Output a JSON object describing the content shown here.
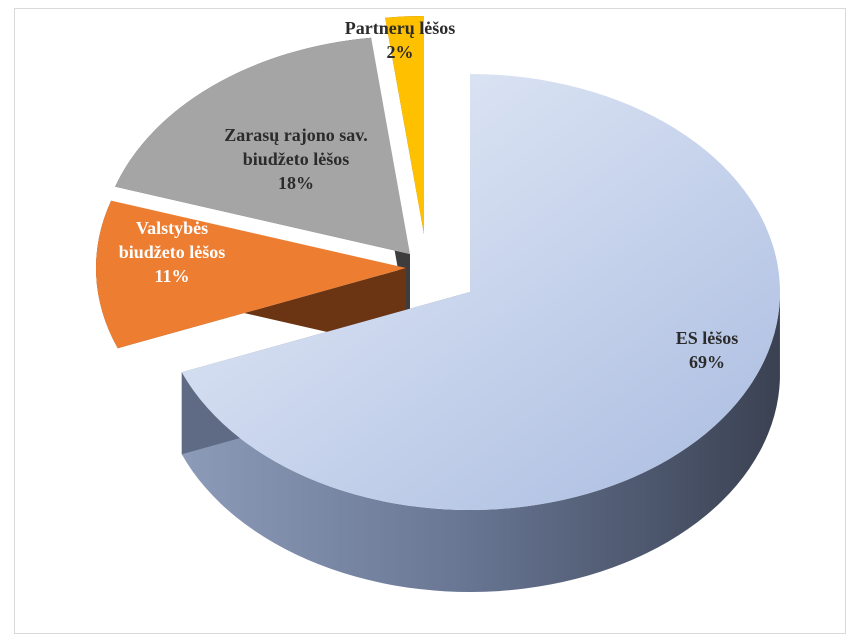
{
  "chart_data": {
    "type": "pie",
    "style": "3d-exploded",
    "slices": [
      {
        "label_lines": [
          "ES lėšos"
        ],
        "value": 69,
        "value_label": "69%",
        "color": "#b8c7e6",
        "text_color": "#2b2b2b"
      },
      {
        "label_lines": [
          "Valstybės",
          "biudžeto lėšos"
        ],
        "value": 11,
        "value_label": "11%",
        "color": "#ed7d31",
        "text_color": "#ffffff"
      },
      {
        "label_lines": [
          "Zarasų rajono sav.",
          "biudžeto lėšos"
        ],
        "value": 18,
        "value_label": "18%",
        "color": "#a5a5a5",
        "text_color": "#2b2b2b"
      },
      {
        "label_lines": [
          "Partnerų lėšos"
        ],
        "value": 2,
        "value_label": "2%",
        "color": "#ffc000",
        "text_color": "#2b2b2b"
      }
    ],
    "legend": "none",
    "title": ""
  }
}
